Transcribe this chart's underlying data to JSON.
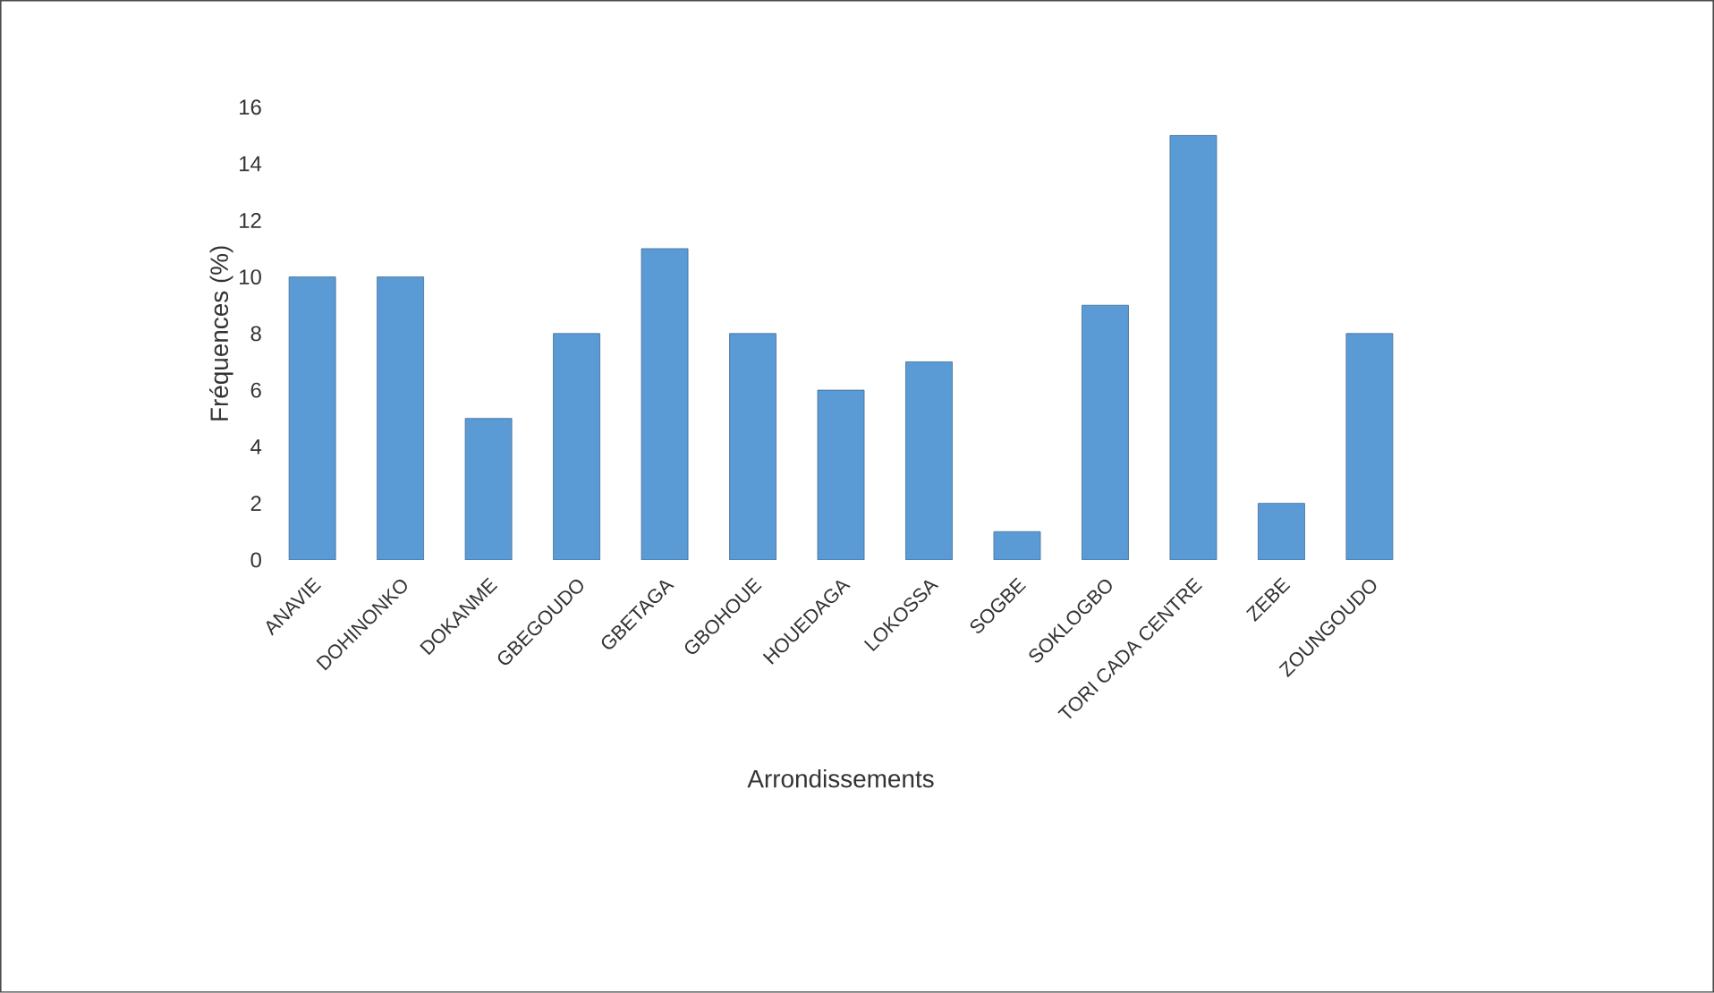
{
  "chart_data": {
    "type": "bar",
    "xlabel": "Arrondissements",
    "ylabel": "Fréquences (%)",
    "categories": [
      "ANAVIE",
      "DOHINONKO",
      "DOKANME",
      "GBEGOUDO",
      "GBETAGA",
      "GBOHOUE",
      "HOUEDAGA",
      "LOKOSSA",
      "SOGBE",
      "SOKLOGBO",
      "TORI CADA CENTRE",
      "ZEBE",
      "ZOUNGOUDO"
    ],
    "values": [
      10,
      10,
      5,
      8,
      11,
      8,
      6,
      7,
      1,
      9,
      15,
      2,
      8
    ],
    "color": "#5b9bd5",
    "ylim": [
      0,
      16
    ],
    "yticks": [
      0,
      2,
      4,
      6,
      8,
      10,
      12,
      14,
      16
    ]
  }
}
